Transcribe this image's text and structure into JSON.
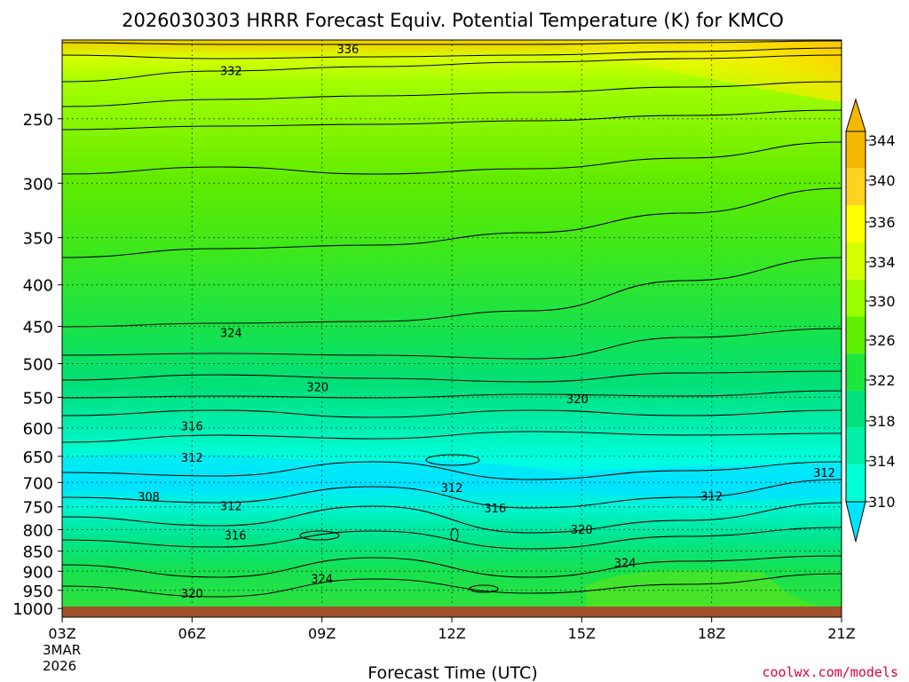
{
  "title": "2026030303 HRRR Forecast Equiv. Potential Temperature (K) for KMCO",
  "watermark": "coolwx.com/models",
  "chart_data": {
    "type": "heatmap",
    "title": "2026030303 HRRR Forecast Equiv. Potential Temperature (K) for KMCO",
    "xlabel": "Forecast Time (UTC)",
    "ylabel": "",
    "x_ticks": [
      {
        "label": "03Z",
        "hour": 0
      },
      {
        "label": "06Z",
        "hour": 3
      },
      {
        "label": "09Z",
        "hour": 6
      },
      {
        "label": "12Z",
        "hour": 9
      },
      {
        "label": "15Z",
        "hour": 12
      },
      {
        "label": "18Z",
        "hour": 15
      },
      {
        "label": "21Z",
        "hour": 18
      }
    ],
    "x_date_label": [
      "3MAR",
      "2026"
    ],
    "y_ticks": [
      250,
      300,
      350,
      400,
      450,
      500,
      550,
      600,
      650,
      700,
      750,
      800,
      850,
      900,
      950,
      1000
    ],
    "y_scale": "log",
    "y_range": [
      1025,
      200
    ],
    "grid": true,
    "colorbar": {
      "position": "right",
      "ticks": [
        310,
        314,
        318,
        322,
        326,
        330,
        334,
        336,
        340,
        344
      ],
      "colors": [
        "#00e5ff",
        "#00ffd5",
        "#00f0a8",
        "#00e37b",
        "#1be63c",
        "#5ef000",
        "#9bff00",
        "#d6ff00",
        "#ffff00",
        "#ffd21e",
        "#f5b800"
      ]
    },
    "contour_labels": [
      {
        "text": "336",
        "hour": 6.6,
        "p": 205
      },
      {
        "text": "332",
        "hour": 3.9,
        "p": 218
      },
      {
        "text": "324",
        "hour": 3.9,
        "p": 458
      },
      {
        "text": "320",
        "hour": 5.9,
        "p": 534
      },
      {
        "text": "320",
        "hour": 11.9,
        "p": 552
      },
      {
        "text": "316",
        "hour": 3.0,
        "p": 596
      },
      {
        "text": "312",
        "hour": 3.0,
        "p": 652
      },
      {
        "text": "312",
        "hour": 17.6,
        "p": 680
      },
      {
        "text": "308",
        "hour": 2.0,
        "p": 728
      },
      {
        "text": "312",
        "hour": 3.9,
        "p": 748
      },
      {
        "text": "312",
        "hour": 9.0,
        "p": 710
      },
      {
        "text": "312",
        "hour": 15.0,
        "p": 727
      },
      {
        "text": "316",
        "hour": 10.0,
        "p": 752
      },
      {
        "text": "320",
        "hour": 12.0,
        "p": 799
      },
      {
        "text": "316",
        "hour": 4.0,
        "p": 812
      },
      {
        "text": "324",
        "hour": 13.0,
        "p": 878
      },
      {
        "text": "324",
        "hour": 6.0,
        "p": 919
      },
      {
        "text": "320",
        "hour": 3.0,
        "p": 958
      }
    ]
  }
}
